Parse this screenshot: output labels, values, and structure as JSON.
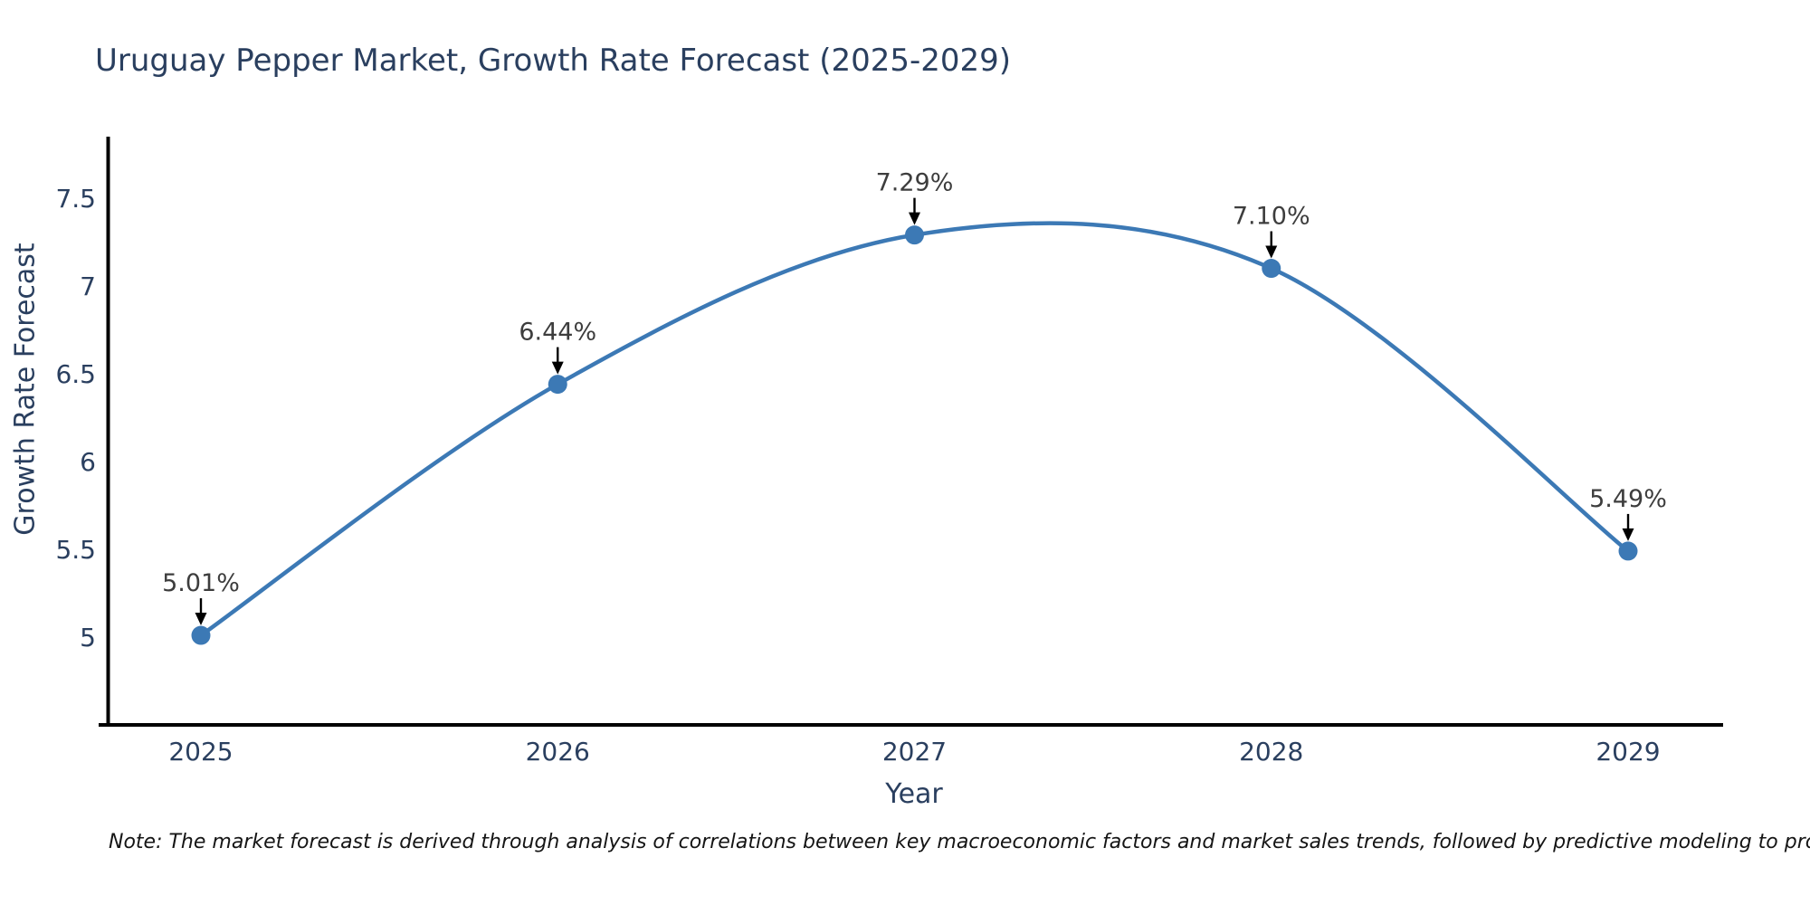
{
  "chart_data": {
    "type": "line",
    "title": "Uruguay Pepper Market, Growth Rate Forecast (2025-2029)",
    "xlabel": "Year",
    "ylabel": "Growth Rate Forecast",
    "x": [
      "2025",
      "2026",
      "2027",
      "2028",
      "2029"
    ],
    "values": [
      5.01,
      6.44,
      7.29,
      7.1,
      5.49
    ],
    "point_labels": [
      "5.01%",
      "6.44%",
      "7.29%",
      "7.10%",
      "5.49%"
    ],
    "ytick_values": [
      5,
      5.5,
      6,
      6.5,
      7,
      7.5
    ],
    "ytick_labels": [
      "5",
      "5.5",
      "6",
      "6.5",
      "7",
      "7.5"
    ],
    "ylim": [
      4.5,
      7.85
    ],
    "grid": false,
    "legend": "none",
    "line_shape": "spline",
    "note": "Note: The market forecast is derived through analysis of correlations between key macroeconomic factors and market sales trends, followed by predictive modeling to project future sales",
    "colors": {
      "line": "#3c79b5",
      "marker": "#3c79b5",
      "axis_line": "#000000",
      "tick_label": "#2a3f5f",
      "title": "#2a3f5f",
      "annotation_text": "#3d3d3d",
      "annotation_arrow": "#000000",
      "note_text": "#151515",
      "background": "#ffffff"
    }
  }
}
